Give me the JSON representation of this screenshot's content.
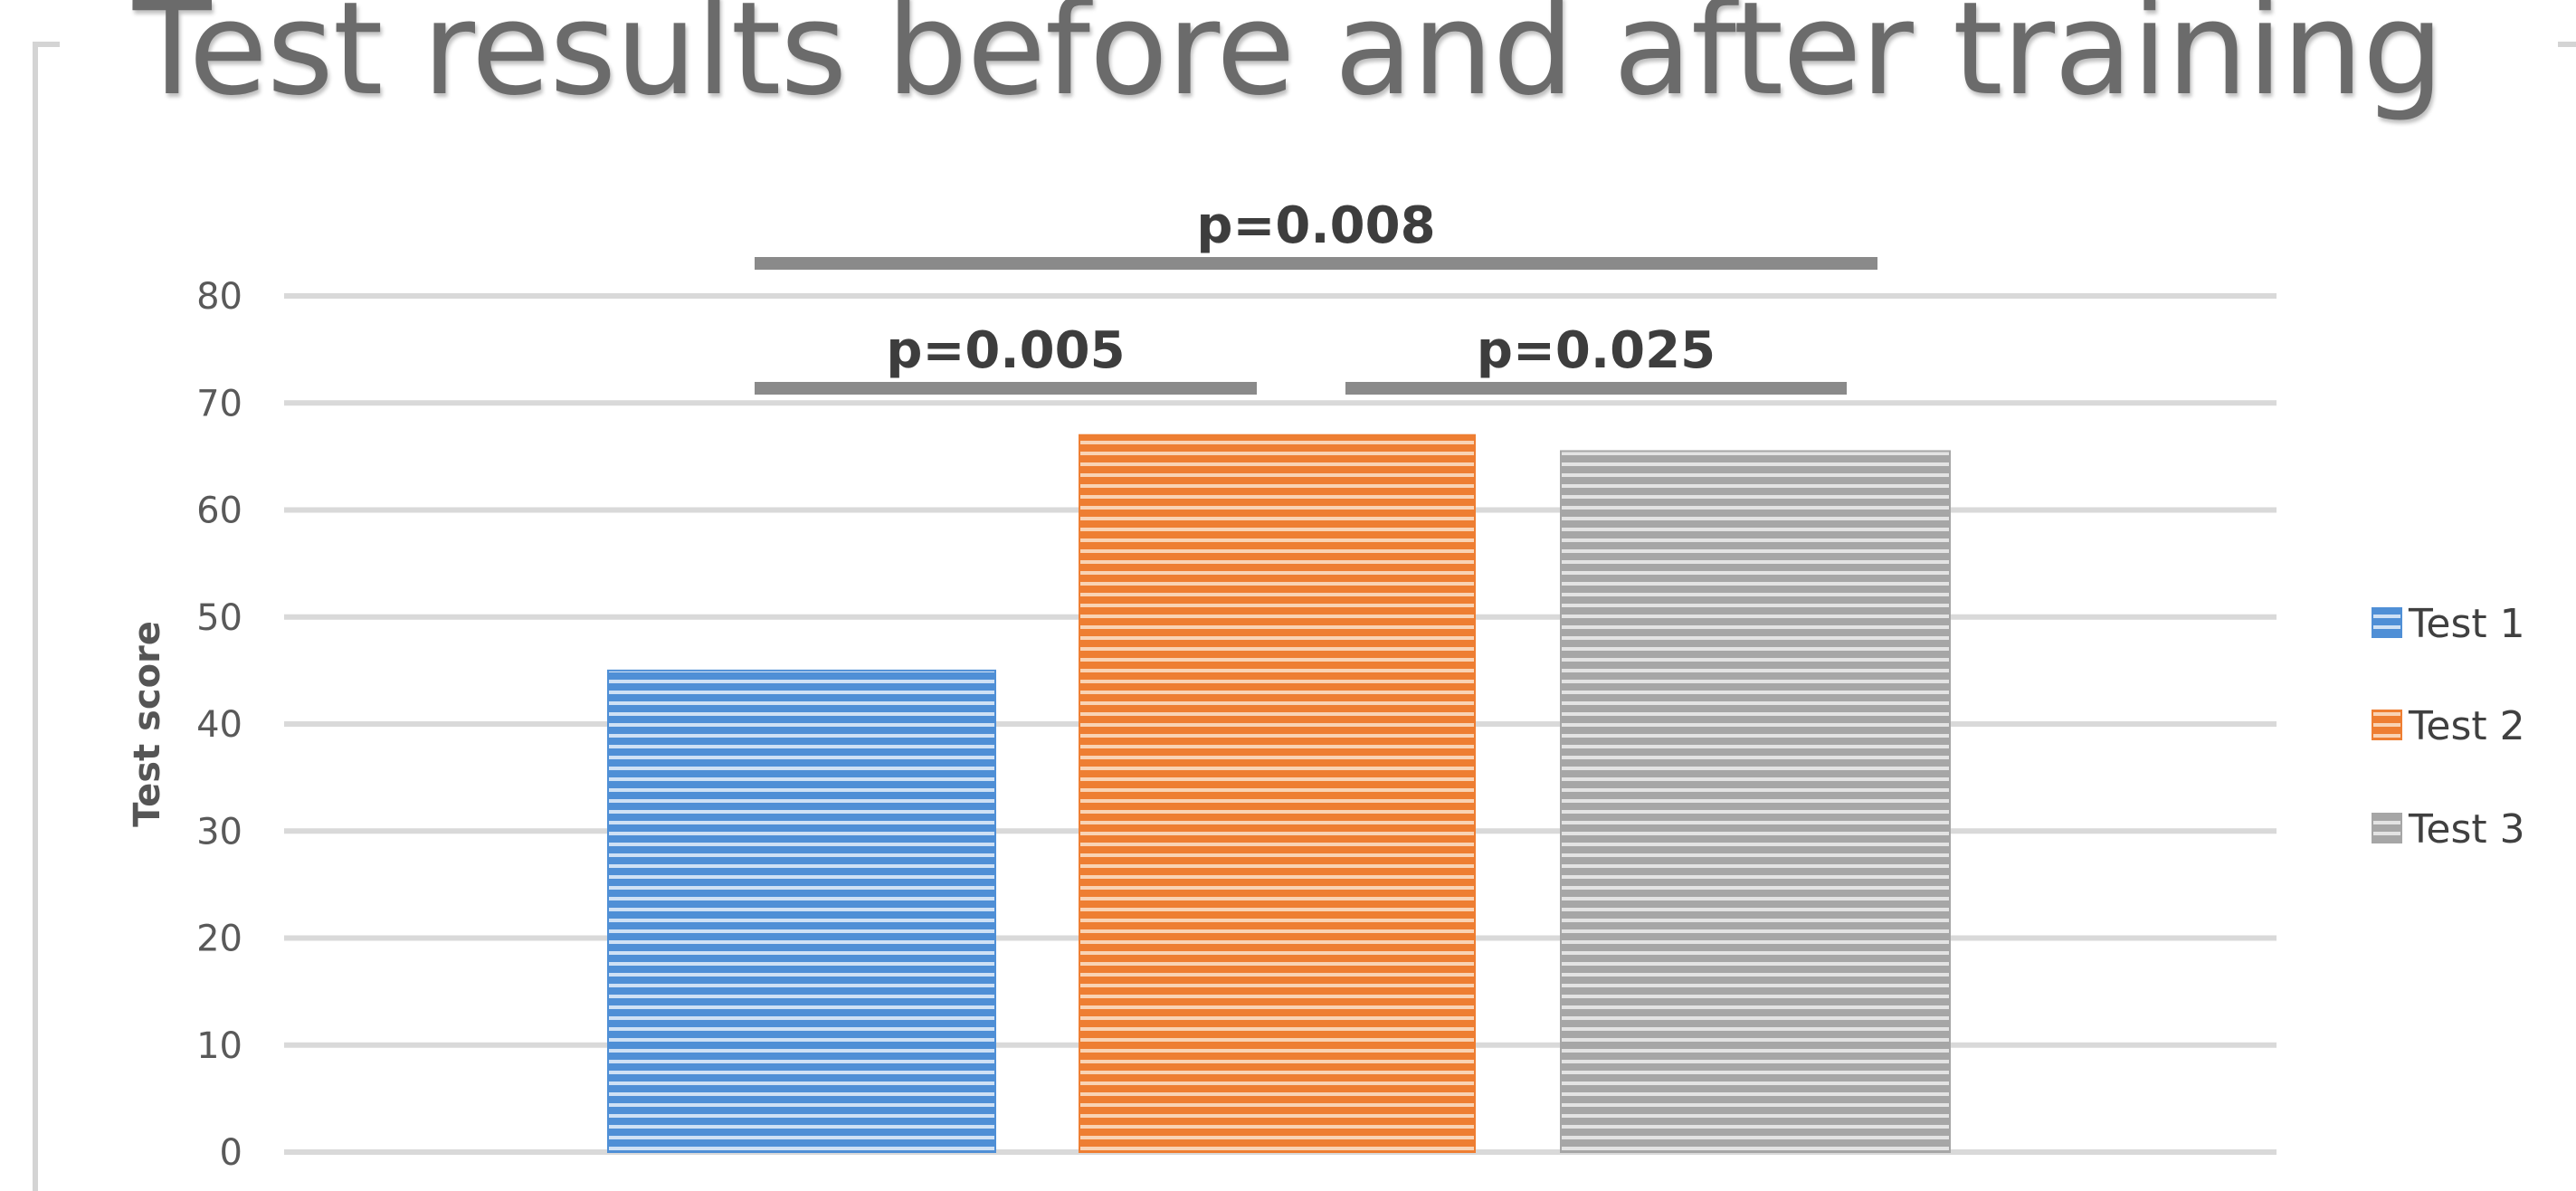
{
  "chart_data": {
    "type": "bar",
    "title": "Test results before and after training",
    "ylabel": "Test score",
    "xlabel": "",
    "ylim": [
      0,
      80
    ],
    "yticks": [
      0,
      10,
      20,
      30,
      40,
      50,
      60,
      70,
      80
    ],
    "grid": true,
    "legend_position": "right",
    "series": [
      {
        "name": "Test 1",
        "value": 45,
        "color": "#4f8fd6",
        "stripe": "#cfe1f5"
      },
      {
        "name": "Test 2",
        "value": 67,
        "color": "#ee7e32",
        "stripe": "#f9d3b4"
      },
      {
        "name": "Test 3",
        "value": 65.5,
        "color": "#a6a6a6",
        "stripe": "#e3e3e3"
      }
    ],
    "annotations": [
      {
        "label": "p=0.008",
        "from": "Test 1",
        "to": "Test 3",
        "level": 2
      },
      {
        "label": "p=0.005",
        "from": "Test 1",
        "to": "Test 2",
        "level": 1
      },
      {
        "label": "p=0.025",
        "from": "Test 2",
        "to": "Test 3",
        "level": 1
      }
    ]
  }
}
